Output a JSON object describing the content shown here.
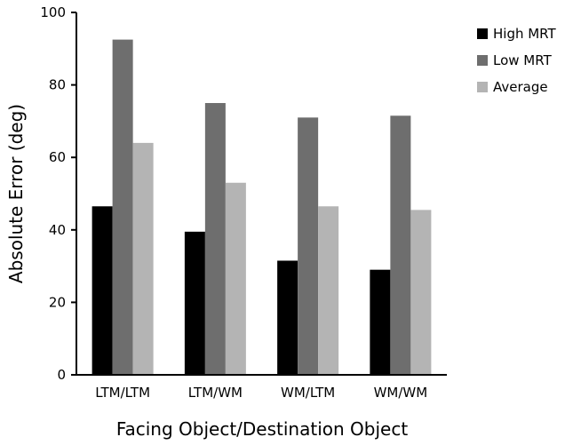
{
  "chart_data": {
    "type": "bar",
    "categories": [
      "LTM/LTM",
      "LTM/WM",
      "WM/LTM",
      "WM/WM"
    ],
    "series": [
      {
        "name": "High MRT",
        "color": "#000000",
        "values": [
          46.5,
          39.5,
          31.5,
          29.0
        ]
      },
      {
        "name": "Low MRT",
        "color": "#6e6e6e",
        "values": [
          92.5,
          75.0,
          71.0,
          71.5
        ]
      },
      {
        "name": "Average",
        "color": "#b4b4b4",
        "values": [
          64.0,
          53.0,
          46.5,
          45.5
        ]
      }
    ],
    "xlabel": "Facing Object/Destination Object",
    "ylabel": "Absolute Error (deg)",
    "ylim": [
      0,
      100
    ],
    "yticks": [
      0,
      20,
      40,
      60,
      80,
      100
    ],
    "legend_position": "top-right",
    "grid": false
  }
}
